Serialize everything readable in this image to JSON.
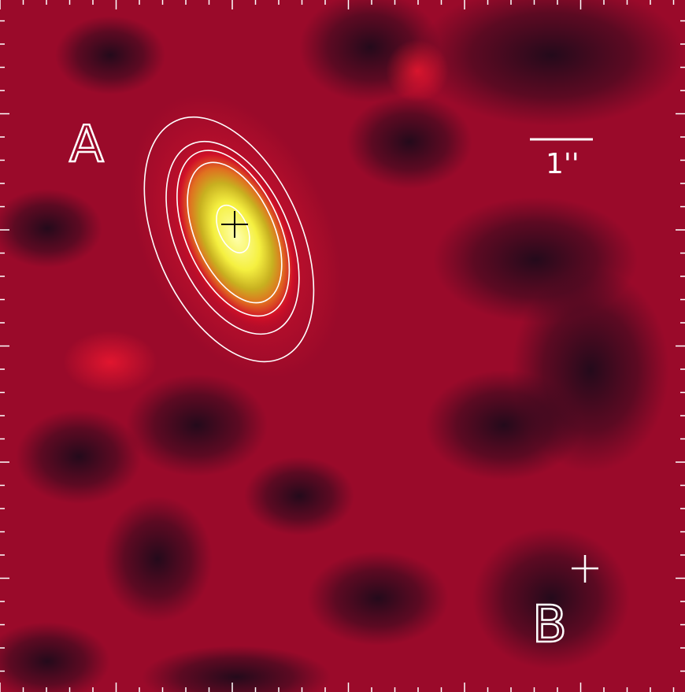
{
  "labels": {
    "a": "A",
    "scale": "1''",
    "b": "B"
  }
}
